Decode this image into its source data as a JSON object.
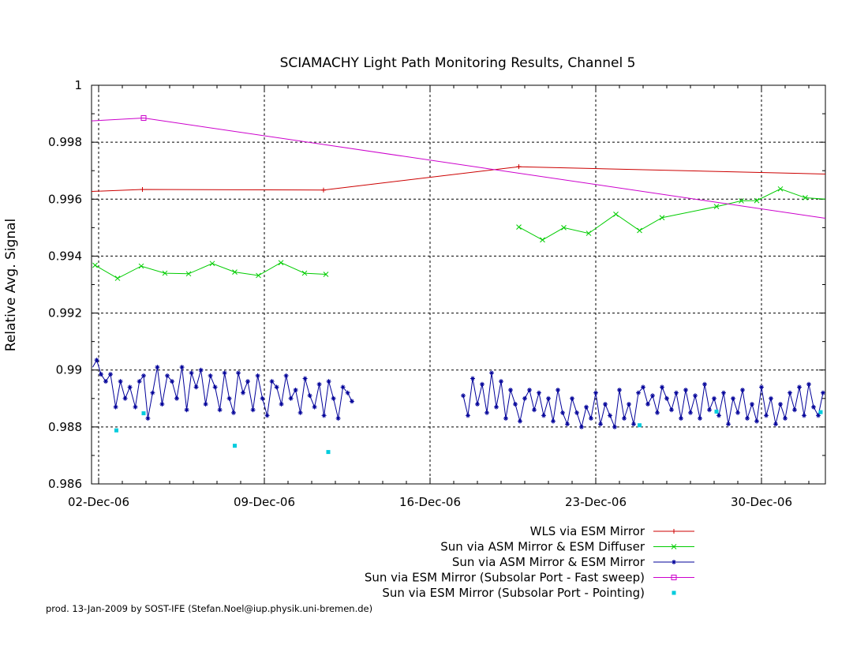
{
  "footer": "prod. 13-Jan-2009 by SOST-IFE (Stefan.Noel@iup.physik.uni-bremen.de)",
  "chart_data": {
    "type": "line",
    "title": "SCIAMACHY Light Path Monitoring Results, Channel 5",
    "xlabel": "",
    "ylabel": "Relative Avg. Signal",
    "x_unit": "date (Dec-2006 day, decimal)",
    "xlim": [
      1.7,
      32.7
    ],
    "ylim": [
      0.986,
      1.0
    ],
    "x_ticks": [
      2,
      9,
      16,
      23,
      30
    ],
    "x_tick_labels": [
      "02-Dec-06",
      "09-Dec-06",
      "16-Dec-06",
      "23-Dec-06",
      "30-Dec-06"
    ],
    "y_ticks": [
      0.986,
      0.988,
      0.99,
      0.992,
      0.994,
      0.996,
      0.998,
      1.0
    ],
    "y_tick_labels": [
      "0.986",
      "0.988",
      "0.99",
      "0.992",
      "0.994",
      "0.996",
      "0.998",
      "1"
    ],
    "grid": true,
    "legend_position": "bottom-right, below plot",
    "series": [
      {
        "name": "WLS via ESM Mirror",
        "color": "#cc0000",
        "marker": "plus",
        "line": true,
        "x": [
          1.7,
          3.85,
          11.5,
          19.75,
          32.7
        ],
        "y": [
          0.99627,
          0.99634,
          0.99632,
          0.99714,
          0.99688
        ]
      },
      {
        "name": "Sun via ASM Mirror & ESM Diffuser",
        "color": "#00cc00",
        "marker": "cross",
        "line": true,
        "segments": [
          {
            "x": [
              1.85,
              2.8,
              3.8,
              4.8,
              5.8,
              6.8,
              7.75,
              8.75,
              9.7,
              10.7,
              11.6
            ],
            "y": [
              0.99368,
              0.99322,
              0.99365,
              0.9934,
              0.99338,
              0.99374,
              0.99344,
              0.99332,
              0.99377,
              0.9934,
              0.99336
            ]
          },
          {
            "x": [
              19.75,
              20.75,
              21.65,
              22.7,
              23.85,
              24.85,
              25.8,
              28.1,
              29.15,
              29.8,
              30.8,
              31.85,
              32.7
            ],
            "y": [
              0.99502,
              0.99457,
              0.995,
              0.9948,
              0.99547,
              0.9949,
              0.99535,
              0.99574,
              0.99594,
              0.99595,
              0.99636,
              0.99605,
              0.996
            ]
          }
        ]
      },
      {
        "name": "Sun via ASM Mirror & ESM Mirror",
        "color": "#000099",
        "marker": "star",
        "line": true,
        "segments": [
          {
            "x": [
              1.75,
              1.92,
              2.1,
              2.3,
              2.5,
              2.72,
              2.92,
              3.12,
              3.32,
              3.55,
              3.72,
              3.9,
              4.08,
              4.28,
              4.48,
              4.68,
              4.9,
              5.1,
              5.3,
              5.52,
              5.72,
              5.92,
              6.12,
              6.32,
              6.52,
              6.72,
              6.92,
              7.12,
              7.32,
              7.52,
              7.7,
              7.9,
              8.1,
              8.3,
              8.52,
              8.72,
              8.92,
              9.12,
              9.32,
              9.52,
              9.72,
              9.92,
              10.12,
              10.32,
              10.52,
              10.72,
              10.92,
              11.12,
              11.32,
              11.52,
              11.72,
              11.92,
              12.12,
              12.32,
              12.52,
              12.7
            ],
            "y": [
              0.9901,
              0.99035,
              0.98985,
              0.9896,
              0.98985,
              0.9887,
              0.9896,
              0.989,
              0.9894,
              0.9887,
              0.9896,
              0.9898,
              0.9883,
              0.9892,
              0.9901,
              0.9888,
              0.9898,
              0.9896,
              0.989,
              0.9901,
              0.9886,
              0.9899,
              0.9894,
              0.99,
              0.9888,
              0.9898,
              0.9894,
              0.9886,
              0.9899,
              0.989,
              0.9885,
              0.9899,
              0.9892,
              0.9896,
              0.9886,
              0.9898,
              0.989,
              0.9884,
              0.9896,
              0.9894,
              0.9888,
              0.9898,
              0.989,
              0.9893,
              0.9885,
              0.9897,
              0.9891,
              0.9887,
              0.9895,
              0.9884,
              0.9896,
              0.989,
              0.9883,
              0.9894,
              0.9892,
              0.9889
            ]
          },
          {
            "x": [
              17.4,
              17.6,
              17.8,
              18.0,
              18.2,
              18.4,
              18.6,
              18.8,
              19.0,
              19.2,
              19.4,
              19.6,
              19.8,
              20.0,
              20.2,
              20.4,
              20.6,
              20.8,
              21.0,
              21.2,
              21.4,
              21.6,
              21.8,
              22.0,
              22.2,
              22.4,
              22.6,
              22.8,
              23.0,
              23.2,
              23.4,
              23.6,
              23.8,
              24.0,
              24.2,
              24.4,
              24.6,
              24.8,
              25.0,
              25.2,
              25.4,
              25.6,
              25.8,
              26.0,
              26.2,
              26.4,
              26.6,
              26.8,
              27.0,
              27.2,
              27.4,
              27.6,
              27.8,
              28.0,
              28.2,
              28.4,
              28.6,
              28.8,
              29.0,
              29.2,
              29.4,
              29.6,
              29.8,
              30.0,
              30.2,
              30.4,
              30.6,
              30.8,
              31.0,
              31.2,
              31.4,
              31.6,
              31.8,
              32.0,
              32.2,
              32.4,
              32.6
            ],
            "y": [
              0.9891,
              0.9884,
              0.9897,
              0.9888,
              0.9895,
              0.9885,
              0.9899,
              0.9887,
              0.9896,
              0.9883,
              0.9893,
              0.9888,
              0.9882,
              0.989,
              0.9893,
              0.9886,
              0.9892,
              0.9884,
              0.989,
              0.9882,
              0.9893,
              0.9885,
              0.9881,
              0.989,
              0.9885,
              0.988,
              0.9887,
              0.9883,
              0.9892,
              0.9881,
              0.9888,
              0.9884,
              0.988,
              0.9893,
              0.9883,
              0.9888,
              0.9881,
              0.9892,
              0.9894,
              0.9888,
              0.9891,
              0.9885,
              0.9894,
              0.989,
              0.9886,
              0.9892,
              0.9883,
              0.9893,
              0.9885,
              0.9891,
              0.9883,
              0.9895,
              0.9886,
              0.989,
              0.9884,
              0.9892,
              0.9881,
              0.989,
              0.9885,
              0.9893,
              0.9883,
              0.9888,
              0.9882,
              0.9894,
              0.9884,
              0.989,
              0.9881,
              0.9888,
              0.9883,
              0.9892,
              0.9886,
              0.9894,
              0.9884,
              0.9895,
              0.9887,
              0.9884,
              0.9892
            ]
          }
        ]
      },
      {
        "name": "Sun via ESM Mirror (Subsolar Port - Fast sweep)",
        "color": "#cc00cc",
        "marker": "open-square",
        "line": true,
        "x": [
          1.7,
          3.9,
          32.7
        ],
        "y": [
          0.99875,
          0.99885,
          0.99533
        ]
      },
      {
        "name": "Sun via ESM Mirror (Subsolar Port - Pointing)",
        "color": "#00ccdd",
        "marker": "filled-square",
        "line": false,
        "x": [
          2.75,
          3.9,
          7.75,
          11.7,
          24.85,
          28.1,
          32.5
        ],
        "y": [
          0.98788,
          0.98848,
          0.98734,
          0.98712,
          0.98806,
          0.98854,
          0.98852
        ]
      }
    ]
  }
}
